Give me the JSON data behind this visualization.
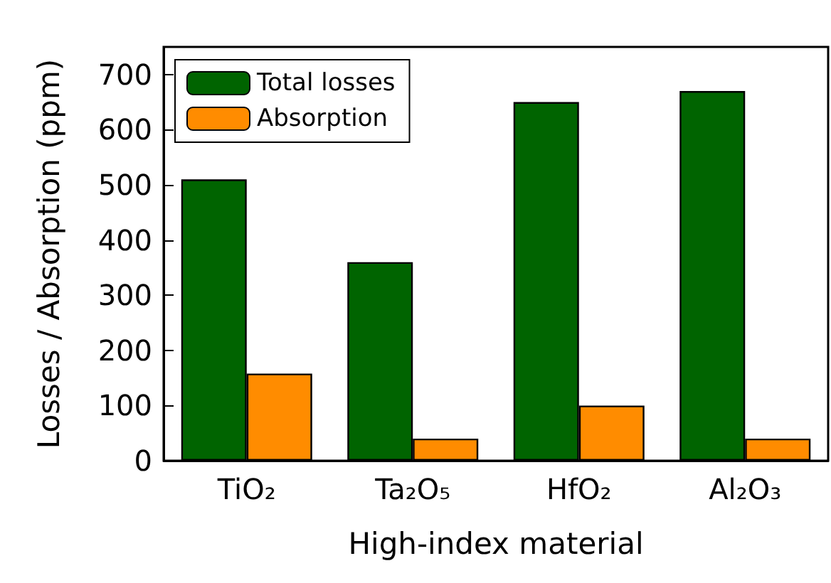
{
  "chart_data": {
    "type": "bar",
    "xlabel": "High-index material",
    "ylabel": "Losses / Absorption (ppm)",
    "categories": [
      "TiO₂",
      "Ta₂O₅",
      "HfO₂",
      "Al₂O₃"
    ],
    "series": [
      {
        "name": "Total losses",
        "color": "#006400",
        "values": [
          510,
          360,
          650,
          670
        ]
      },
      {
        "name": "Absorption",
        "color": "#ff8c00",
        "values": [
          158,
          40,
          100,
          40
        ]
      }
    ],
    "ylim": [
      0,
      750
    ],
    "yticks": [
      0,
      100,
      200,
      300,
      400,
      500,
      600,
      700
    ],
    "grid": false,
    "legend": "top left"
  }
}
